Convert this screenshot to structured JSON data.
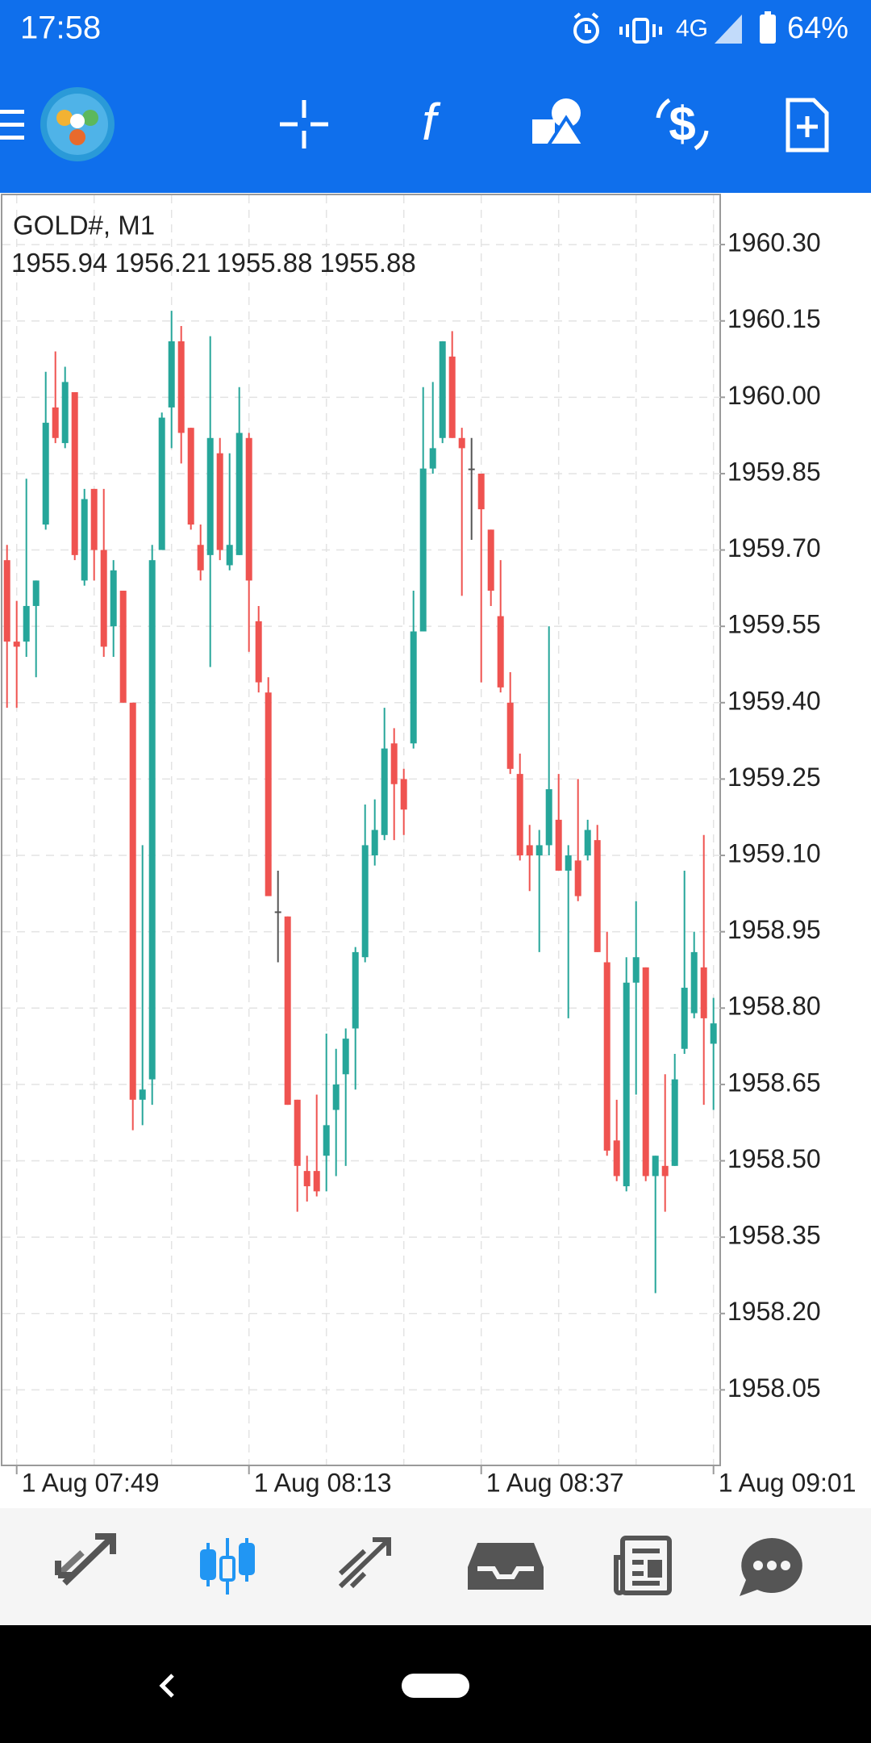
{
  "status_bar": {
    "time": "17:58",
    "network": "4G",
    "battery": "64%"
  },
  "chart_data": {
    "type": "candlestick",
    "title": "GOLD#, M1",
    "header_values": [
      1955.94,
      1956.21,
      1955.88,
      1955.88
    ],
    "categories": [
      null,
      "1 Aug 07:49",
      null,
      null,
      null,
      null,
      null,
      null,
      null,
      null,
      null,
      null,
      null,
      null,
      null,
      null,
      null,
      null,
      null,
      null,
      null,
      null,
      null,
      null,
      null,
      "1 Aug 08:13",
      null,
      null,
      null,
      null,
      null,
      null,
      null,
      null,
      null,
      null,
      null,
      null,
      null,
      null,
      null,
      null,
      null,
      null,
      null,
      null,
      null,
      null,
      null,
      "1 Aug 08:37",
      null,
      null,
      null,
      null,
      null,
      null,
      null,
      null,
      null,
      null,
      null,
      null,
      null,
      null,
      null,
      null,
      null,
      null,
      null,
      null,
      null,
      null,
      null,
      "1 Aug 09:01"
    ],
    "open": [
      1959.68,
      1959.52,
      1959.52,
      1959.59,
      1959.75,
      1959.98,
      1959.91,
      1960.01,
      1959.64,
      1959.82,
      1959.7,
      1959.55,
      1959.62,
      1959.4,
      1958.62,
      1958.66,
      1959.7,
      1959.98,
      1960.11,
      1959.94,
      1959.71,
      1959.69,
      1959.89,
      1959.67,
      1959.69,
      1959.92,
      1959.56,
      1959.42,
      1958.99,
      1958.98,
      1958.62,
      1958.48,
      1958.48,
      1958.51,
      1958.6,
      1958.67,
      1958.76,
      1958.9,
      1959.1,
      1959.14,
      1959.32,
      1959.25,
      1959.32,
      1959.54,
      1959.86,
      1959.92,
      1960.08,
      1959.92,
      1959.86,
      1959.85,
      1959.74,
      1959.57,
      1959.4,
      1959.26,
      1959.12,
      1959.1,
      1959.12,
      1959.17,
      1959.07,
      1959.09,
      1959.1,
      1959.13,
      1958.89,
      1958.54,
      1958.45,
      1958.85,
      1958.88,
      1958.47,
      1958.49,
      1958.49,
      1958.72,
      1958.79,
      1958.88,
      1958.73
    ],
    "high": [
      1959.71,
      1959.6,
      1959.84,
      1959.64,
      1960.05,
      1960.09,
      1960.06,
      1960.01,
      1959.82,
      1959.82,
      1959.82,
      1959.68,
      1959.62,
      1959.4,
      1959.12,
      1959.71,
      1959.97,
      1960.17,
      1960.14,
      1959.94,
      1959.75,
      1960.12,
      1959.92,
      1959.89,
      1960.02,
      1959.93,
      1959.59,
      1959.45,
      1959.07,
      1958.98,
      1958.62,
      1958.51,
      1958.63,
      1958.75,
      1958.72,
      1958.76,
      1958.92,
      1959.2,
      1959.21,
      1959.39,
      1959.35,
      1959.27,
      1959.62,
      1960.02,
      1960.03,
      1960.11,
      1960.13,
      1959.94,
      1959.92,
      1959.85,
      1959.74,
      1959.68,
      1959.46,
      1959.3,
      1959.16,
      1959.15,
      1959.55,
      1959.26,
      1959.12,
      1959.25,
      1959.17,
      1959.16,
      1958.95,
      1958.62,
      1958.9,
      1959.01,
      1958.88,
      1958.51,
      1958.67,
      1958.71,
      1959.07,
      1958.95,
      1959.14,
      1958.82
    ],
    "low": [
      1959.39,
      1959.39,
      1959.49,
      1959.45,
      1959.74,
      1959.91,
      1959.9,
      1959.68,
      1959.63,
      1959.64,
      1959.49,
      1959.49,
      1959.4,
      1958.56,
      1958.57,
      1958.61,
      1959.7,
      1959.9,
      1959.87,
      1959.74,
      1959.64,
      1959.47,
      1959.68,
      1959.66,
      1959.69,
      1959.5,
      1959.42,
      1959.02,
      1958.89,
      1958.61,
      1958.4,
      1958.42,
      1958.43,
      1958.44,
      1958.47,
      1958.49,
      1958.64,
      1958.89,
      1959.08,
      1959.13,
      1959.13,
      1959.14,
      1959.31,
      1959.54,
      1959.85,
      1959.91,
      1959.92,
      1959.61,
      1959.72,
      1959.44,
      1959.59,
      1959.42,
      1959.26,
      1959.09,
      1959.03,
      1958.91,
      1959.1,
      1959.07,
      1958.78,
      1959.01,
      1959.09,
      1958.91,
      1958.51,
      1958.46,
      1958.44,
      1958.63,
      1958.46,
      1958.24,
      1958.4,
      1958.49,
      1958.71,
      1958.78,
      1958.61,
      1958.6
    ],
    "close": [
      1959.52,
      1959.51,
      1959.59,
      1959.64,
      1959.95,
      1959.92,
      1960.03,
      1959.69,
      1959.8,
      1959.7,
      1959.51,
      1959.66,
      1959.4,
      1958.62,
      1958.64,
      1959.68,
      1959.96,
      1960.11,
      1959.93,
      1959.75,
      1959.66,
      1959.92,
      1959.7,
      1959.71,
      1959.93,
      1959.64,
      1959.44,
      1959.02,
      1958.99,
      1958.61,
      1958.49,
      1958.45,
      1958.44,
      1958.57,
      1958.65,
      1958.74,
      1958.91,
      1959.12,
      1959.15,
      1959.31,
      1959.24,
      1959.19,
      1959.54,
      1959.86,
      1959.9,
      1960.11,
      1959.92,
      1959.9,
      1959.86,
      1959.78,
      1959.62,
      1959.43,
      1959.27,
      1959.1,
      1959.1,
      1959.12,
      1959.23,
      1959.07,
      1959.1,
      1959.02,
      1959.15,
      1958.91,
      1958.52,
      1958.47,
      1958.85,
      1958.9,
      1958.47,
      1958.51,
      1958.47,
      1958.66,
      1958.84,
      1958.91,
      1958.78,
      1958.77
    ],
    "up_color": "#26a69a",
    "down_color": "#ef5350",
    "ylim": [
      1957.9,
      1960.4
    ],
    "yticks": [
      1958.05,
      {
        "value": 1958.2,
        "label": "1958.20"
      },
      1958.35,
      {
        "value": 1958.5,
        "label": "1958.50"
      },
      1958.65,
      {
        "value": 1958.8,
        "label": "1958.80"
      },
      1958.95,
      {
        "value": 1959.1,
        "label": "1959.10"
      },
      1959.25,
      {
        "value": 1959.4,
        "label": "1959.40"
      },
      1959.55,
      {
        "value": 1959.7,
        "label": "1959.70"
      },
      1959.85,
      {
        "value": 1960,
        "label": "1960.00"
      },
      1960.15,
      {
        "value": 1960.3,
        "label": "1960.30"
      }
    ],
    "grid": true
  }
}
